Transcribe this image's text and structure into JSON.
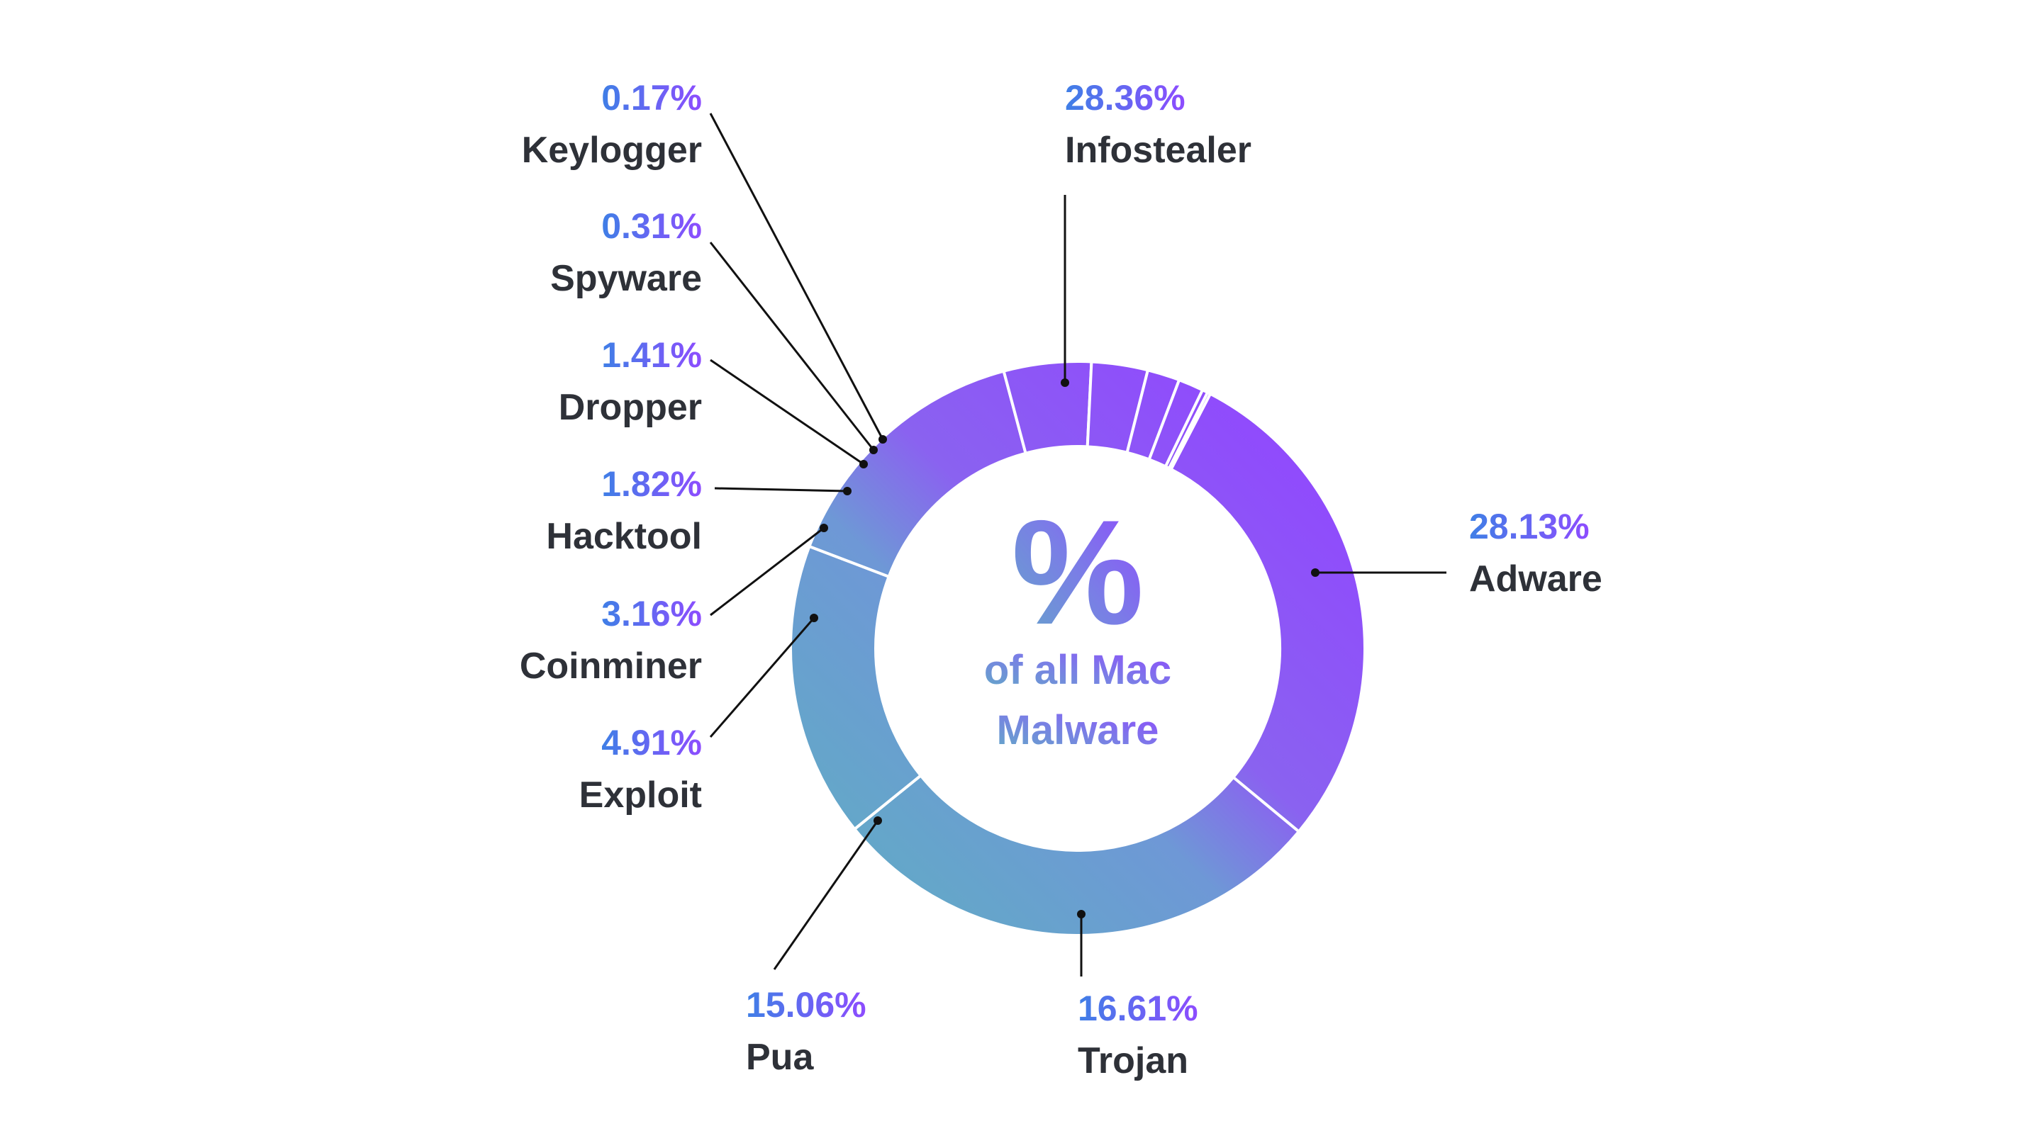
{
  "chart_data": {
    "type": "pie",
    "center_symbol": "%",
    "center_line1": "of all Mac",
    "center_line2": "Malware",
    "colors": {
      "gradient_purple": "#9146ff",
      "gradient_teal": "#62aac6",
      "name_text": "#2e3138",
      "percent_text_start": "#2d8ee0",
      "percent_text_end": "#9146ff"
    },
    "slices": [
      {
        "name": "Infostealer",
        "value": 28.36,
        "label": "28.36%"
      },
      {
        "name": "Adware",
        "value": 28.13,
        "label": "28.13%"
      },
      {
        "name": "Trojan",
        "value": 16.61,
        "label": "16.61%"
      },
      {
        "name": "Pua",
        "value": 15.06,
        "label": "15.06%"
      },
      {
        "name": "Exploit",
        "value": 4.91,
        "label": "4.91%"
      },
      {
        "name": "Coinminer",
        "value": 3.16,
        "label": "3.16%"
      },
      {
        "name": "Hacktool",
        "value": 1.82,
        "label": "1.82%"
      },
      {
        "name": "Dropper",
        "value": 1.41,
        "label": "1.41%"
      },
      {
        "name": "Spyware",
        "value": 0.31,
        "label": "0.31%"
      },
      {
        "name": "Keylogger",
        "value": 0.17,
        "label": "0.17%"
      }
    ]
  }
}
